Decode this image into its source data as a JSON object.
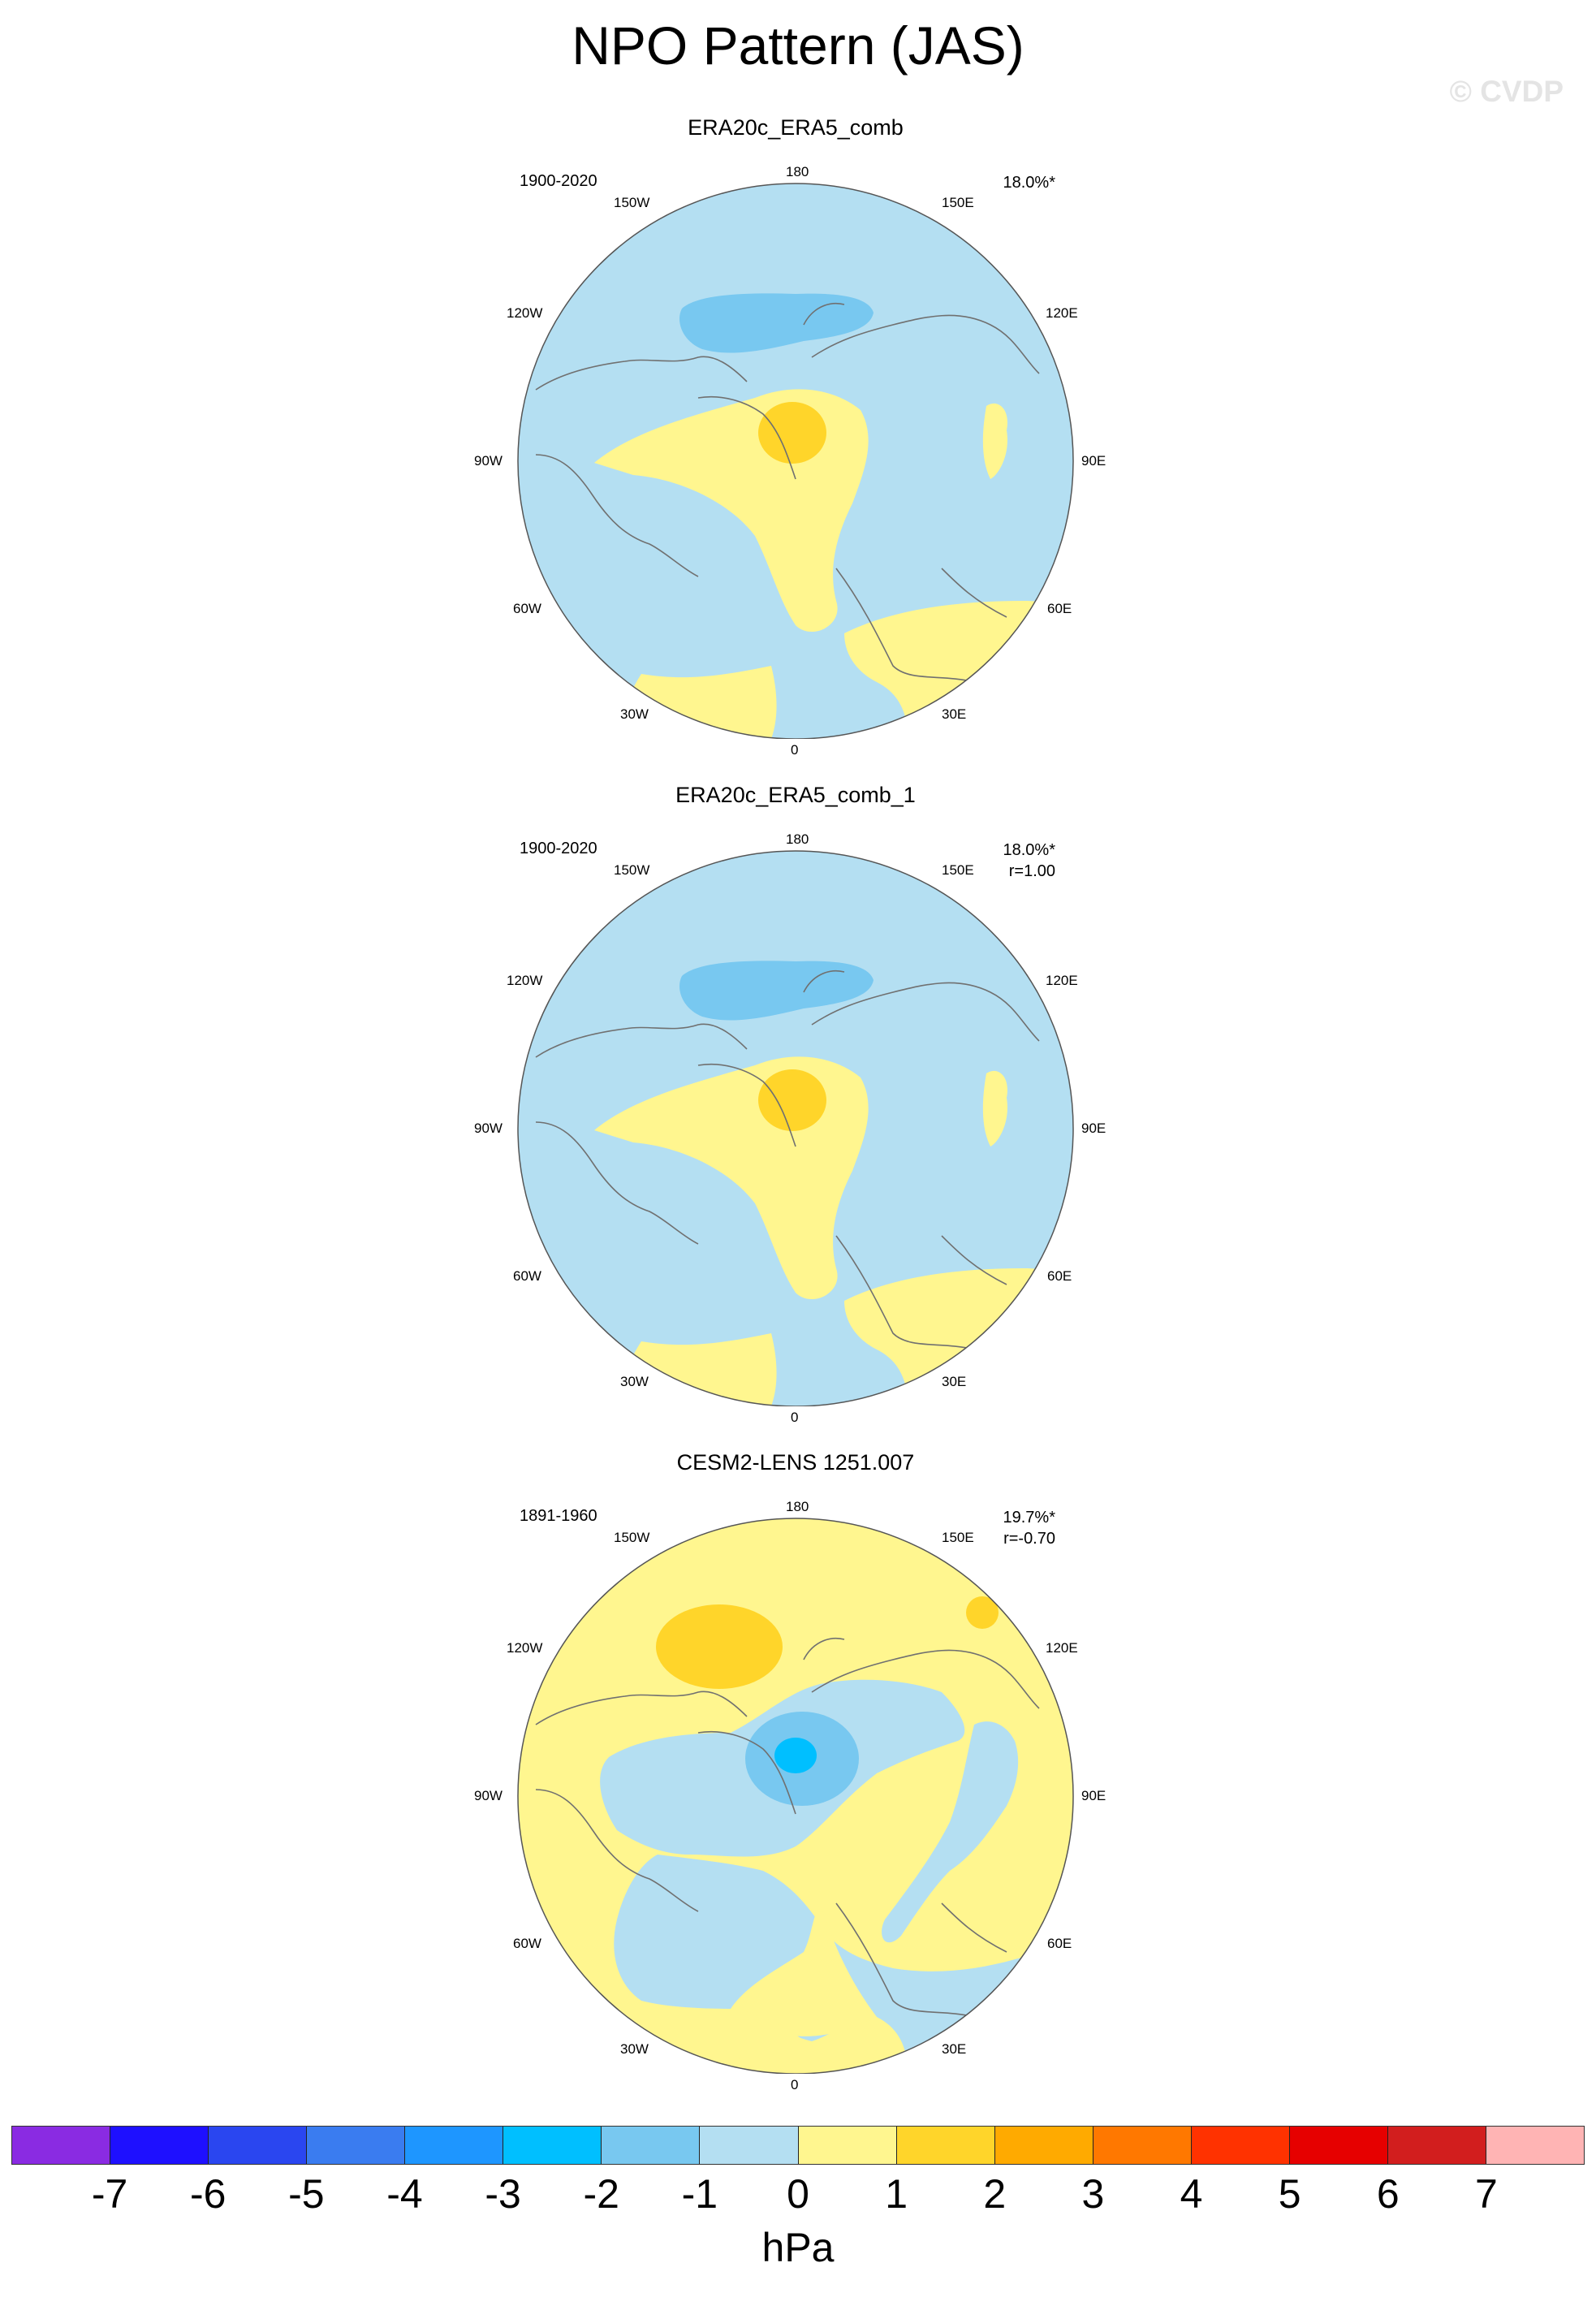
{
  "figure": {
    "title": "NPO Pattern (JAS)",
    "watermark": "© CVDP"
  },
  "panels": [
    {
      "name": "ERA20c_ERA5_comb",
      "period": "1900-2020",
      "variance": "18.0%*",
      "correlation": "",
      "lon_labels": [
        "180",
        "150E",
        "120E",
        "90E",
        "60E",
        "30E",
        "0",
        "30W",
        "60W",
        "90W",
        "120W",
        "150W"
      ],
      "background_level": "-1 to 0",
      "features": [
        {
          "sign": "negative",
          "level": "-2 to -1",
          "region": "North Pacific / Bering Sea"
        },
        {
          "sign": "positive",
          "level": "0 to 1",
          "region": "Arctic Ocean / Greenland / North Atlantic, Europe"
        },
        {
          "sign": "positive",
          "level": "1 to 2",
          "region": "Arctic Ocean north of Greenland"
        }
      ]
    },
    {
      "name": "ERA20c_ERA5_comb_1",
      "period": "1900-2020",
      "variance": "18.0%*",
      "correlation": "r=1.00",
      "lon_labels": [
        "180",
        "150E",
        "120E",
        "90E",
        "60E",
        "30E",
        "0",
        "30W",
        "60W",
        "90W",
        "120W",
        "150W"
      ],
      "background_level": "-1 to 0",
      "features": [
        {
          "sign": "negative",
          "level": "-2 to -1",
          "region": "North Pacific / Bering Sea"
        },
        {
          "sign": "positive",
          "level": "0 to 1",
          "region": "Arctic Ocean / Greenland / North Atlantic, Europe"
        },
        {
          "sign": "positive",
          "level": "1 to 2",
          "region": "Arctic Ocean north of Greenland"
        }
      ]
    },
    {
      "name": "CESM2-LENS 1251.007",
      "period": "1891-1960",
      "variance": "19.7%*",
      "correlation": "r=-0.70",
      "lon_labels": [
        "180",
        "150E",
        "120E",
        "90E",
        "60E",
        "30E",
        "0",
        "30W",
        "60W",
        "90W",
        "120W",
        "150W"
      ],
      "background_level": "0 to 1",
      "features": [
        {
          "sign": "positive",
          "level": "1 to 2",
          "region": "North Pacific"
        },
        {
          "sign": "negative",
          "level": "-1 to 0",
          "region": "Arctic / North Atlantic"
        },
        {
          "sign": "negative",
          "level": "-3 to -1",
          "region": "Central Arctic"
        }
      ]
    }
  ],
  "colorbar": {
    "units": "hPa",
    "tick_labels": [
      "-7",
      "-6",
      "-5",
      "-4",
      "-3",
      "-2",
      "-1",
      "0",
      "1",
      "2",
      "3",
      "4",
      "5",
      "6",
      "7"
    ],
    "colors": [
      "#8a2be2",
      "#1e10ff",
      "#2a46f0",
      "#3a7cf0",
      "#1e96ff",
      "#00bfff",
      "#78c8f0",
      "#b4dff2",
      "#fff68f",
      "#ffd52a",
      "#ffaa00",
      "#ff7800",
      "#ff3200",
      "#e60000",
      "#d21e1e",
      "#ffb4b4"
    ]
  }
}
